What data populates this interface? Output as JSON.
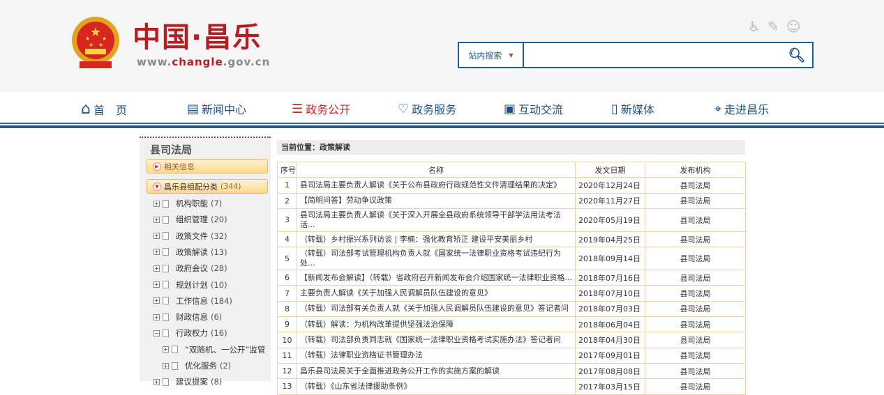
{
  "header": {
    "logo_title": "中国·昌乐",
    "logo_url_pre": "www.",
    "logo_url_mid": "changle",
    "logo_url_post": ".gov.cn",
    "tools": [
      {
        "icon": "accessibility-icon",
        "glyph": "♿"
      },
      {
        "icon": "edit-note-icon",
        "glyph": "✎"
      },
      {
        "icon": "robot-icon",
        "glyph": "☺"
      }
    ],
    "search": {
      "scope": "站内搜索",
      "placeholder": "",
      "icon": "search-icon"
    }
  },
  "nav": [
    {
      "label": "首　页",
      "icon": "home-icon",
      "glyph": "⌂"
    },
    {
      "label": "新闻中心",
      "icon": "newspaper-icon",
      "glyph": "▤"
    },
    {
      "label": "政务公开",
      "icon": "open-affairs-icon",
      "glyph": "☰",
      "active": true
    },
    {
      "label": "政务服务",
      "icon": "heart-icon",
      "glyph": "♡"
    },
    {
      "label": "互动交流",
      "icon": "chat-icon",
      "glyph": "▣"
    },
    {
      "label": "新媒体",
      "icon": "mobile-icon",
      "glyph": "▯"
    },
    {
      "label": "走进昌乐",
      "icon": "map-pin-icon",
      "glyph": "⌖"
    }
  ],
  "colors": {
    "brand_red": "#b81c22",
    "nav_blue": "#1f5d92",
    "active_nav": "#c8242f",
    "table_border": "#efcfa8"
  },
  "sidebar": {
    "title": "县司法局",
    "related": "相关信息",
    "category": "昌乐县组配分类",
    "category_count": "(344)",
    "tree": [
      {
        "label": "机构职能",
        "count": "(7)"
      },
      {
        "label": "组织管理",
        "count": "(20)"
      },
      {
        "label": "政策文件",
        "count": "(32)"
      },
      {
        "label": "政策解读",
        "count": "(13)"
      },
      {
        "label": "政府会议",
        "count": "(28)"
      },
      {
        "label": "规划计划",
        "count": "(10)"
      },
      {
        "label": "工作信息",
        "count": "(184)"
      },
      {
        "label": "财政信息",
        "count": "(6)"
      },
      {
        "label": "行政权力",
        "count": "(16)",
        "expanded": true
      },
      {
        "label": "“双随机、一公开”监管",
        "count": "",
        "child": true
      },
      {
        "label": "优化服务",
        "count": "(2)",
        "child": true
      },
      {
        "label": "建议提案",
        "count": "(8)"
      }
    ]
  },
  "main": {
    "breadcrumb": "当前位置：政策解读",
    "columns": [
      "序号",
      "名称",
      "发文日期",
      "发布机构"
    ],
    "rows": [
      [
        "1",
        "县司法局主要负责人解读《关于公布县政府行政规范性文件清理结果的决定》",
        "2020年12月24日",
        "县司法局"
      ],
      [
        "2",
        "【简明问答】劳动争议政策",
        "2020年11月27日",
        "县司法局"
      ],
      [
        "3",
        "县司法局主要负责人解读《关于深入开展全县政府系统领导干部学法用法考法活...",
        "2020年05月19日",
        "县司法局"
      ],
      [
        "4",
        "（转载）乡村振兴系列访谈 | 李楠：强化教育矫正 建设平安美丽乡村",
        "2019年04月25日",
        "县司法局"
      ],
      [
        "5",
        "（转载）司法部考试管理机构负责人就《国家统一法律职业资格考试违纪行为处...",
        "2018年09月14日",
        "县司法局"
      ],
      [
        "6",
        "【新闻发布会解读】（转载）省政府召开新闻发布会介绍国家统一法律职业资格...",
        "2018年07月16日",
        "县司法局"
      ],
      [
        "7",
        "主要负责人解读《关于加强人民调解员队伍建设的意见》",
        "2018年07月10日",
        "县司法局"
      ],
      [
        "8",
        "（转载）司法部有关负责人就《关于加强人民调解员队伍建设的意见》答记者问",
        "2018年07月03日",
        "县司法局"
      ],
      [
        "9",
        "（转载）解读：为机构改革提供坚强法治保障",
        "2018年06月04日",
        "县司法局"
      ],
      [
        "10",
        "（转载）司法部负责同志就《国家统一法律职业资格考试实施办法》答记者问",
        "2018年04月30日",
        "县司法局"
      ],
      [
        "11",
        "（转载）法律职业资格证书管理办法",
        "2017年09月01日",
        "县司法局"
      ],
      [
        "12",
        "昌乐县司法局关于全面推进政务公开工作的实施方案的解读",
        "2017年08月08日",
        "县司法局"
      ],
      [
        "13",
        "（转载）《山东省法律援助条例》",
        "2017年03月15日",
        "县司法局"
      ]
    ]
  }
}
